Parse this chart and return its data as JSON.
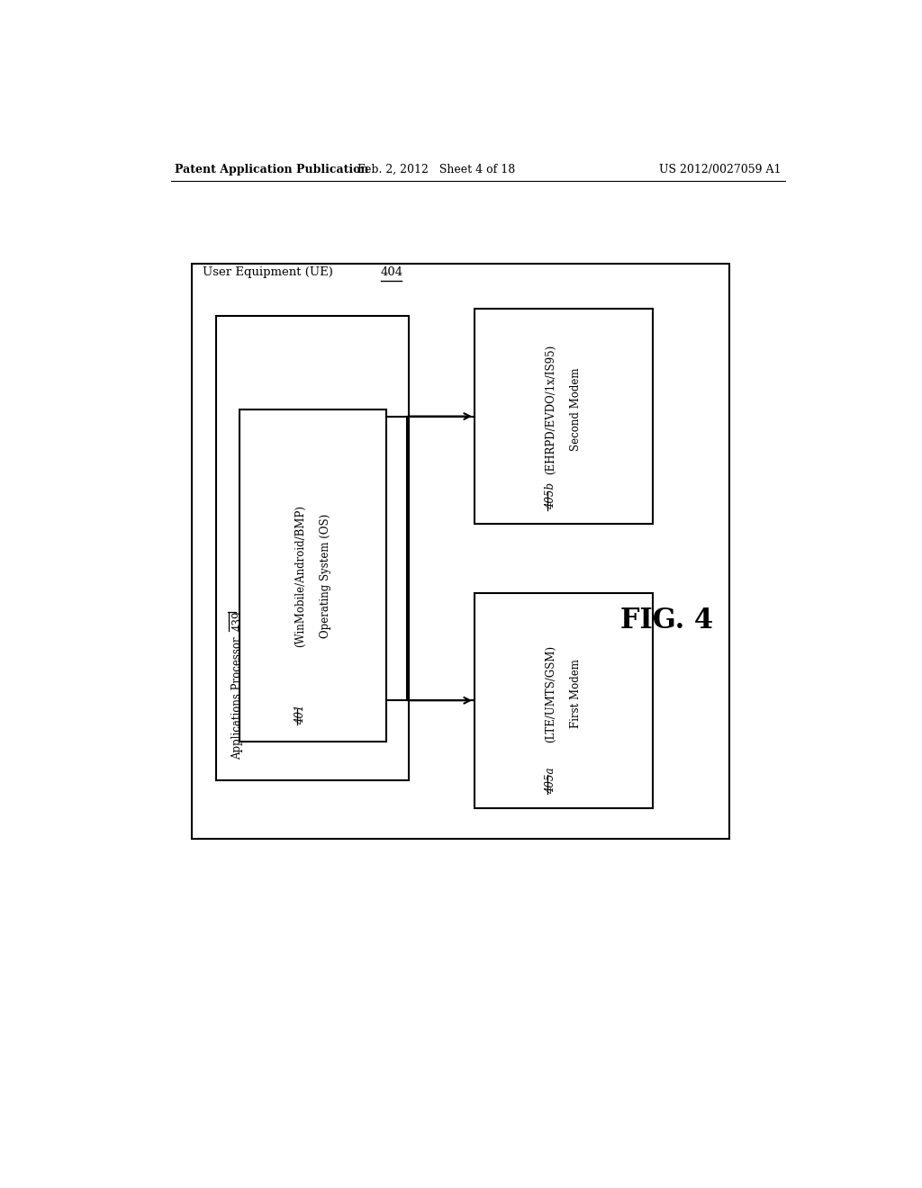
{
  "header_left": "Patent Application Publication",
  "header_mid": "Feb. 2, 2012   Sheet 4 of 18",
  "header_right": "US 2012/0027059 A1",
  "fig_label": "FIG. 4",
  "ue_label": "User Equipment (UE) ",
  "ue_ref": "404",
  "ap_label": "Applications Processor ",
  "ap_ref": "439",
  "os_line1": "Operating System (OS)",
  "os_line2": "(WinMobile/Android/BMP)",
  "os_ref": "401",
  "modem2_line1": "Second Modem",
  "modem2_line2": "(EHRPD/EVDO/1x/IS95)",
  "modem2_ref": "405b",
  "modem1_line1": "First Modem",
  "modem1_line2": "(LTE/UMTS/GSM)",
  "modem1_ref": "405a",
  "bg_color": "#ffffff",
  "box_color": "#000000",
  "text_color": "#000000",
  "font_size_header": 9,
  "font_size_body": 9,
  "font_size_fig": 22
}
